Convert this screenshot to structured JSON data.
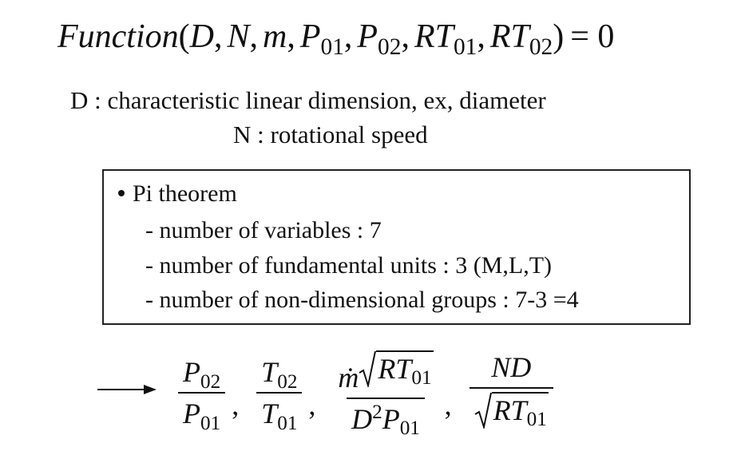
{
  "equation": {
    "name": "Function",
    "open": "(",
    "args": [
      {
        "base": "D"
      },
      {
        "base": "N"
      },
      {
        "base": "m"
      },
      {
        "base": "P",
        "sub": "01"
      },
      {
        "base": "P",
        "sub": "02"
      },
      {
        "base": "RT",
        "sub": "01"
      },
      {
        "base": "RT",
        "sub": "02"
      }
    ],
    "sep": ",",
    "close": ")",
    "rhs": "= 0"
  },
  "definitions": [
    "D : characteristic linear dimension, ex, diameter",
    "N : rotational speed"
  ],
  "box": {
    "title": "Pi theorem",
    "items": [
      "- number of variables : 7",
      "- number of fundamental units : 3 (M,L,T)",
      "- number of non-dimensional groups : 7-3 =4"
    ]
  },
  "groups": {
    "sep": ",",
    "items": [
      {
        "num": [
          {
            "base": "P",
            "sub": "02"
          }
        ],
        "den": [
          {
            "base": "P",
            "sub": "01"
          }
        ]
      },
      {
        "num": [
          {
            "base": "T",
            "sub": "02"
          }
        ],
        "den": [
          {
            "base": "T",
            "sub": "01"
          }
        ]
      },
      {
        "num": [
          {
            "base": "ṁ"
          },
          {
            "base": "RT",
            "sub": "01",
            "sqrt": true
          }
        ],
        "den": [
          {
            "base": "D",
            "sup": "2"
          },
          {
            "base": "P",
            "sub": "01"
          }
        ]
      },
      {
        "num": [
          {
            "base": "ND"
          }
        ],
        "den": [
          {
            "base": "RT",
            "sub": "01",
            "sqrt": true
          }
        ]
      }
    ]
  }
}
